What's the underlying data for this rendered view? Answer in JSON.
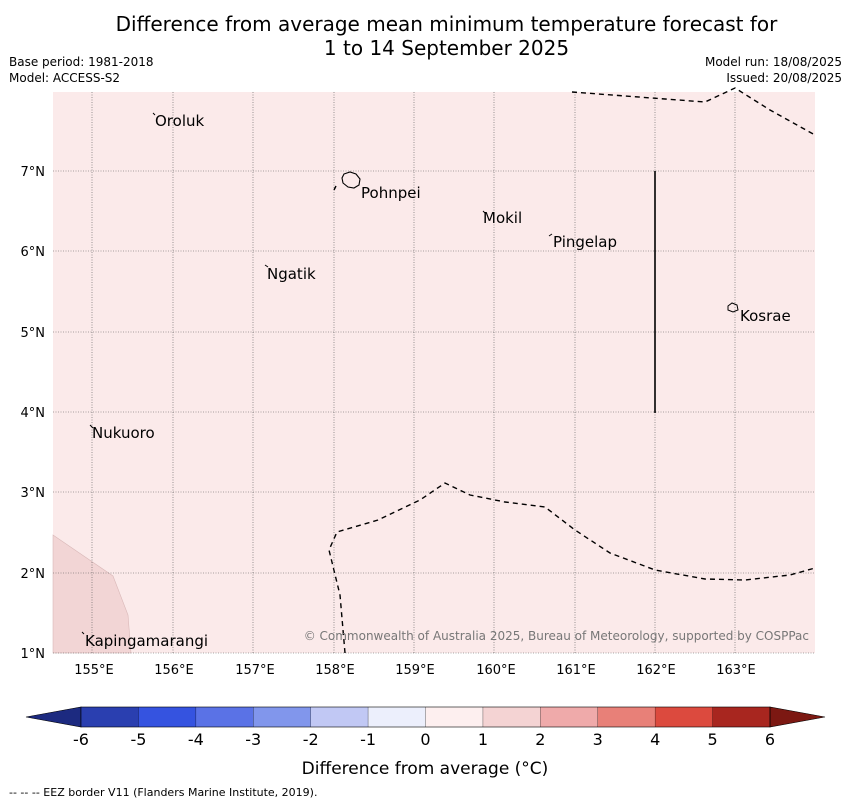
{
  "header": {
    "title_line1": "Difference from average mean minimum temperature forecast for",
    "title_line2": "1 to 14 September 2025",
    "base_period": "Base period: 1981-2018",
    "model": "Model: ACCESS-S2",
    "model_run": "Model run: 18/08/2025",
    "issued": "Issued: 20/08/2025"
  },
  "map": {
    "lon_labels": [
      "155°E",
      "156°E",
      "157°E",
      "158°E",
      "159°E",
      "160°E",
      "161°E",
      "162°E",
      "163°E"
    ],
    "lat_labels": [
      "7°N",
      "6°N",
      "5°N",
      "4°N",
      "3°N",
      "2°N",
      "1°N"
    ],
    "places": [
      {
        "name": "Oroluk"
      },
      {
        "name": "Pohnpei"
      },
      {
        "name": "Mokil"
      },
      {
        "name": "Pingelap"
      },
      {
        "name": "Ngatik"
      },
      {
        "name": "Kosrae"
      },
      {
        "name": "Nukuoro"
      },
      {
        "name": "Kapingamarangi"
      }
    ],
    "copyright": "© Commonwealth of Australia 2025, Bureau of Meteorology, supported by COSPPac",
    "background_anomaly_color": "#fbeaea",
    "southwest_anomaly_color": "#f2d5d5"
  },
  "colorbar": {
    "ticks": [
      "-6",
      "-5",
      "-4",
      "-3",
      "-2",
      "-1",
      "0",
      "1",
      "2",
      "3",
      "4",
      "5",
      "6"
    ],
    "colors": [
      "#1c2a80",
      "#2a3fb0",
      "#3553e0",
      "#5a72e6",
      "#8196ec",
      "#c1c8f4",
      "#eceffc",
      "#fdefef",
      "#f4d3d3",
      "#efaaaa",
      "#e88078",
      "#dc4a3e",
      "#a8261f",
      "#7c1812"
    ],
    "title": "Difference from average (°C)"
  },
  "footnote": "--  --  -- EEZ border V11 (Flanders Marine Institute, 2019)."
}
